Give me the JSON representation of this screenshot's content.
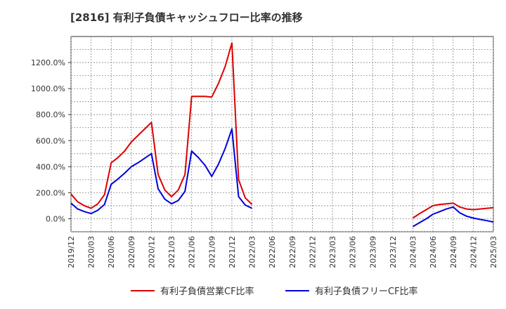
{
  "title": "[2816]  有利子負債キャッシュフロー比率の推移",
  "chart_data": {
    "type": "line",
    "title": "[2816]  有利子負債キャッシュフロー比率の推移",
    "xlabel": "",
    "ylabel": "",
    "ylim": [
      -100,
      1400
    ],
    "yticks": [
      0,
      200,
      400,
      600,
      800,
      1000,
      1200
    ],
    "ytick_labels": [
      "0.0%",
      "200.0%",
      "400.0%",
      "600.0%",
      "800.0%",
      "1000.0%",
      "1200.0%"
    ],
    "xtick_labels": [
      "2019/12",
      "2020/03",
      "2020/06",
      "2020/09",
      "2020/12",
      "2021/03",
      "2021/06",
      "2021/09",
      "2021/12",
      "2022/03",
      "2022/06",
      "2022/09",
      "2022/12",
      "2023/03",
      "2023/06",
      "2023/09",
      "2023/12",
      "2024/03",
      "2024/06",
      "2024/09",
      "2024/12",
      "2025/03"
    ],
    "grid": true,
    "legend_position": "bottom",
    "series": [
      {
        "name": "有利子負債営業CF比率",
        "color": "#dd0000",
        "segments": [
          [
            [
              0,
              190
            ],
            [
              1,
              130
            ],
            [
              2,
              100
            ],
            [
              3,
              80
            ],
            [
              4,
              115
            ],
            [
              5,
              185
            ],
            [
              6,
              430
            ],
            [
              7,
              470
            ],
            [
              8,
              520
            ],
            [
              9,
              590
            ],
            [
              10,
              640
            ],
            [
              11,
              690
            ],
            [
              12,
              740
            ],
            [
              13,
              340
            ],
            [
              14,
              220
            ],
            [
              15,
              170
            ],
            [
              16,
              220
            ],
            [
              17,
              340
            ],
            [
              18,
              940
            ],
            [
              19,
              940
            ],
            [
              20,
              940
            ],
            [
              21,
              935
            ],
            [
              22,
              1040
            ],
            [
              23,
              1170
            ],
            [
              24,
              1350
            ],
            [
              25,
              300
            ],
            [
              26,
              160
            ],
            [
              27,
              110
            ]
          ],
          [
            [
              51,
              5
            ],
            [
              52,
              40
            ],
            [
              53,
              70
            ],
            [
              54,
              100
            ],
            [
              55,
              110
            ],
            [
              56,
              115
            ],
            [
              57,
              120
            ],
            [
              58,
              90
            ],
            [
              59,
              75
            ],
            [
              60,
              70
            ],
            [
              61,
              75
            ],
            [
              62,
              80
            ],
            [
              63,
              85
            ]
          ]
        ]
      },
      {
        "name": "有利子負債フリーCF比率",
        "color": "#0000dd",
        "segments": [
          [
            [
              0,
              120
            ],
            [
              1,
              75
            ],
            [
              2,
              55
            ],
            [
              3,
              40
            ],
            [
              4,
              65
            ],
            [
              5,
              110
            ],
            [
              6,
              265
            ],
            [
              7,
              305
            ],
            [
              8,
              350
            ],
            [
              9,
              400
            ],
            [
              10,
              430
            ],
            [
              11,
              465
            ],
            [
              12,
              500
            ],
            [
              13,
              230
            ],
            [
              14,
              150
            ],
            [
              15,
              115
            ],
            [
              16,
              140
            ],
            [
              17,
              210
            ],
            [
              18,
              520
            ],
            [
              19,
              470
            ],
            [
              20,
              410
            ],
            [
              21,
              325
            ],
            [
              22,
              420
            ],
            [
              23,
              540
            ],
            [
              24,
              690
            ],
            [
              25,
              170
            ],
            [
              26,
              105
            ],
            [
              27,
              80
            ]
          ],
          [
            [
              51,
              -60
            ],
            [
              52,
              -30
            ],
            [
              53,
              0
            ],
            [
              54,
              35
            ],
            [
              55,
              55
            ],
            [
              56,
              75
            ],
            [
              57,
              90
            ],
            [
              58,
              45
            ],
            [
              59,
              20
            ],
            [
              60,
              5
            ],
            [
              61,
              -5
            ],
            [
              62,
              -15
            ],
            [
              63,
              -25
            ]
          ]
        ]
      }
    ]
  }
}
